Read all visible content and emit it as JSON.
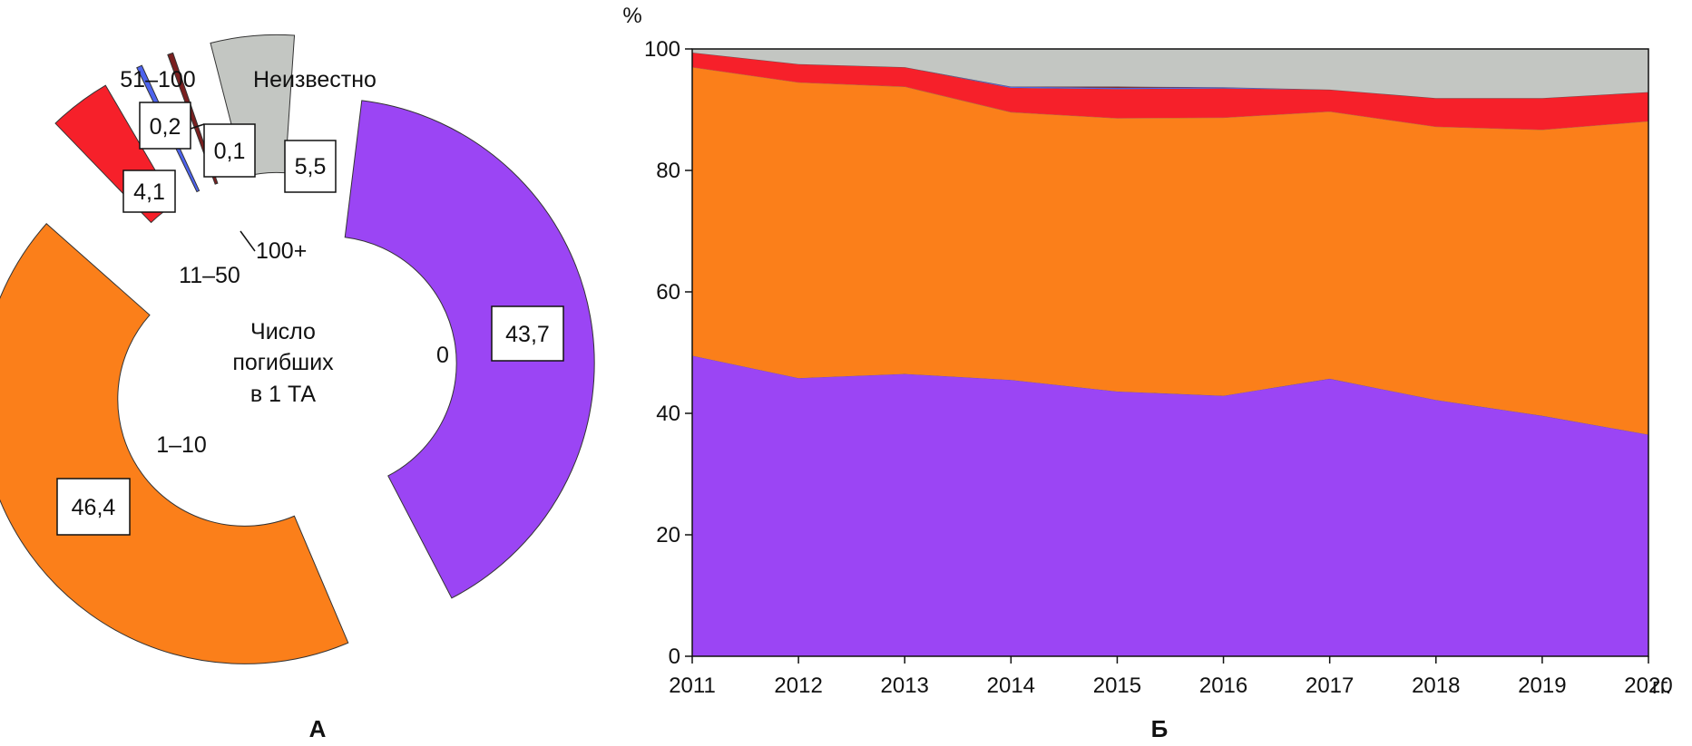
{
  "chart_data": [
    {
      "type": "pie",
      "variant": "exploded-donut",
      "panel_label": "А",
      "center_label": [
        "Число",
        "погибших",
        "в 1 ТА"
      ],
      "slices": [
        {
          "category": "0",
          "value": 43.7,
          "value_label": "43,7",
          "color": "#9b45f4"
        },
        {
          "category": "1–10",
          "value": 46.4,
          "value_label": "46,4",
          "color": "#fb7f1a"
        },
        {
          "category": "11–50",
          "value": 4.1,
          "value_label": "4,1",
          "color": "#f6202a"
        },
        {
          "category": "51–100",
          "value": 0.2,
          "value_label": "0,2",
          "color": "#4d63ee"
        },
        {
          "category": "100+",
          "value": 0.1,
          "value_label": "0,1",
          "color": "#7a1f1f"
        },
        {
          "category": "Неизвестно",
          "value": 5.5,
          "value_label": "5,5",
          "color": "#c3c6c2"
        }
      ]
    },
    {
      "type": "area",
      "stacked": true,
      "panel_label": "Б",
      "ylabel": "%",
      "x_unit": "гг.",
      "x": [
        "2011",
        "2012",
        "2013",
        "2014",
        "2015",
        "2016",
        "2017",
        "2018",
        "2019",
        "2020"
      ],
      "ylim": [
        0,
        100
      ],
      "yticks": [
        "0",
        "20",
        "40",
        "60",
        "80",
        "100"
      ],
      "series": [
        {
          "name": "0",
          "color": "#9b45f4",
          "values": [
            49.5,
            45.8,
            46.5,
            45.5,
            43.6,
            42.9,
            45.7,
            42.2,
            39.6,
            36.5
          ]
        },
        {
          "name": "1–10",
          "color": "#fb7f1a",
          "values": [
            47.5,
            48.7,
            47.3,
            44.1,
            45.0,
            45.8,
            44.0,
            45.0,
            47.1,
            51.6
          ]
        },
        {
          "name": "11–50",
          "color": "#f6202a",
          "values": [
            2.4,
            3.0,
            3.2,
            4.0,
            4.8,
            4.8,
            3.6,
            4.7,
            5.2,
            4.8
          ]
        },
        {
          "name": "51–100",
          "color": "#4d63ee",
          "values": [
            0.0,
            0.0,
            0.0,
            0.2,
            0.2,
            0.2,
            0.0,
            0.0,
            0.0,
            0.0
          ]
        },
        {
          "name": "100+",
          "color": "#7a1f1f",
          "values": [
            0.0,
            0.0,
            0.0,
            0.0,
            0.2,
            0.0,
            0.0,
            0.0,
            0.0,
            0.0
          ]
        },
        {
          "name": "Неизвестно",
          "color": "#c3c6c2",
          "values": [
            0.6,
            2.5,
            3.0,
            6.2,
            6.2,
            6.3,
            6.7,
            8.1,
            8.1,
            7.1
          ]
        }
      ]
    }
  ]
}
